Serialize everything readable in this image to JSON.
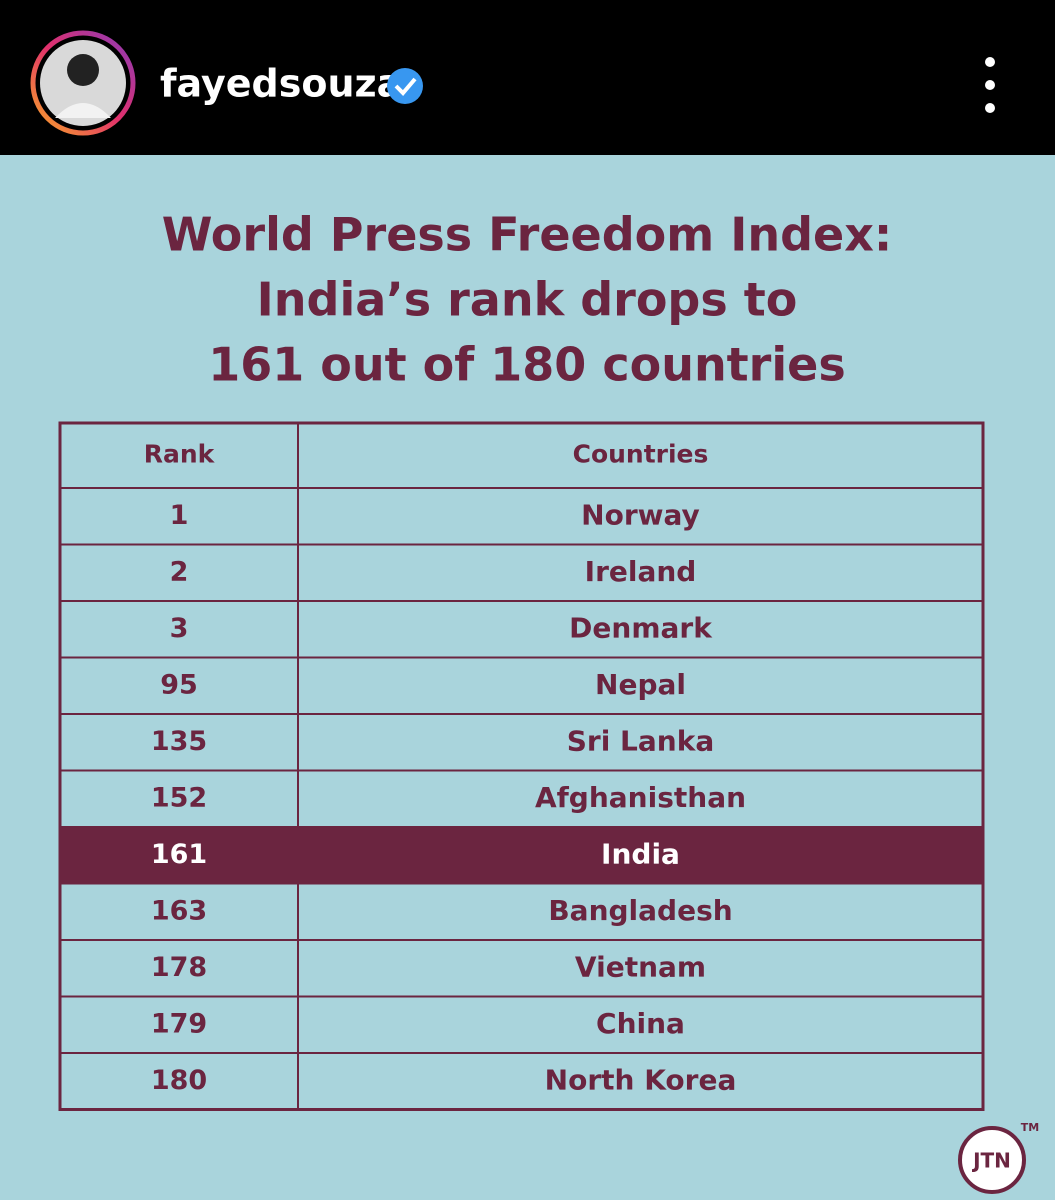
{
  "header": {
    "username": "fayedsouza"
  },
  "post": {
    "title_lines": [
      "World Press Freedom Index:",
      "India’s rank drops to",
      "161 out of 180 countries"
    ],
    "table": {
      "columns": [
        "Rank",
        "Countries"
      ],
      "rows": [
        [
          1,
          "Norway"
        ],
        [
          2,
          "Ireland"
        ],
        [
          3,
          "Denmark"
        ],
        [
          95,
          "Nepal"
        ],
        [
          135,
          "Sri Lanka"
        ],
        [
          152,
          "Afghanisthan"
        ],
        [
          161,
          "India"
        ],
        [
          163,
          "Bangladesh"
        ],
        [
          178,
          "Vietnam"
        ],
        [
          179,
          "China"
        ],
        [
          180,
          "North Korea"
        ]
      ]
    },
    "logo": "JTN",
    "trademark": "TM"
  }
}
